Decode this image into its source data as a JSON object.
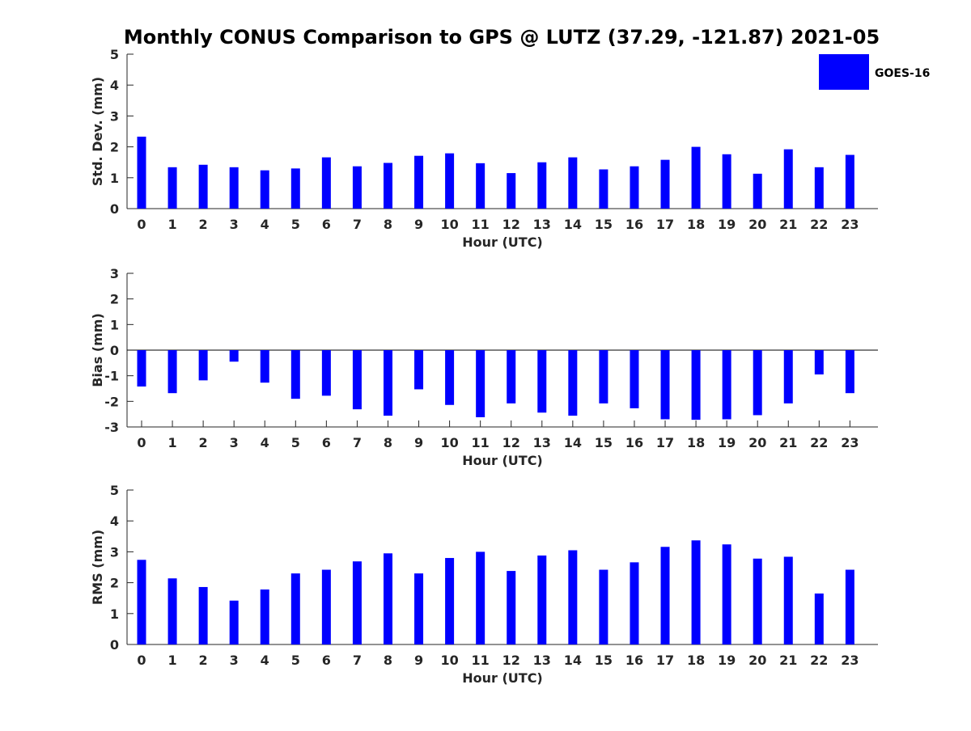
{
  "chart_data": {
    "title": "Monthly CONUS Comparison to GPS @ LUTZ (37.29, -121.87) 2021-05",
    "legend": {
      "entries": [
        "GOES-16"
      ],
      "placement": "top-right",
      "color": "#0000ff"
    },
    "panels": [
      {
        "type": "bar",
        "ylabel": "Std. Dev. (mm)",
        "xlabel": "Hour (UTC)",
        "ylim": [
          0,
          5
        ],
        "yticks": [
          "0",
          "1",
          "2",
          "3",
          "4",
          "5"
        ],
        "categories": [
          "0",
          "1",
          "2",
          "3",
          "4",
          "5",
          "6",
          "7",
          "8",
          "9",
          "10",
          "11",
          "12",
          "13",
          "14",
          "15",
          "16",
          "17",
          "18",
          "19",
          "20",
          "21",
          "22",
          "23"
        ],
        "series": [
          {
            "name": "GOES-16",
            "color": "#0000ff",
            "values": [
              2.33,
              1.34,
              1.42,
              1.34,
              1.24,
              1.3,
              1.66,
              1.37,
              1.48,
              1.71,
              1.79,
              1.47,
              1.15,
              1.5,
              1.66,
              1.27,
              1.37,
              1.58,
              2.0,
              1.76,
              1.13,
              1.92,
              1.34,
              1.74
            ]
          }
        ]
      },
      {
        "type": "bar",
        "ylabel": "Bias (mm)",
        "xlabel": "Hour (UTC)",
        "ylim": [
          -3,
          3
        ],
        "yticks": [
          "-3",
          "-2",
          "-1",
          "0",
          "1",
          "2",
          "3"
        ],
        "categories": [
          "0",
          "1",
          "2",
          "3",
          "4",
          "5",
          "6",
          "7",
          "8",
          "9",
          "10",
          "11",
          "12",
          "13",
          "14",
          "15",
          "16",
          "17",
          "18",
          "19",
          "20",
          "21",
          "22",
          "23"
        ],
        "series": [
          {
            "name": "GOES-16",
            "color": "#0000ff",
            "values": [
              -1.42,
              -1.68,
              -1.18,
              -0.45,
              -1.27,
              -1.9,
              -1.78,
              -2.31,
              -2.56,
              -1.53,
              -2.14,
              -2.62,
              -2.08,
              -2.44,
              -2.56,
              -2.08,
              -2.27,
              -2.7,
              -2.72,
              -2.7,
              -2.54,
              -2.08,
              -0.95,
              -1.68
            ]
          }
        ]
      },
      {
        "type": "bar",
        "ylabel": "RMS (mm)",
        "xlabel": "Hour (UTC)",
        "ylim": [
          0,
          5
        ],
        "yticks": [
          "0",
          "1",
          "2",
          "3",
          "4",
          "5"
        ],
        "categories": [
          "0",
          "1",
          "2",
          "3",
          "4",
          "5",
          "6",
          "7",
          "8",
          "9",
          "10",
          "11",
          "12",
          "13",
          "14",
          "15",
          "16",
          "17",
          "18",
          "19",
          "20",
          "21",
          "22",
          "23"
        ],
        "series": [
          {
            "name": "GOES-16",
            "color": "#0000ff",
            "values": [
              2.74,
              2.14,
              1.86,
              1.42,
              1.78,
              2.3,
              2.42,
              2.69,
              2.95,
              2.3,
              2.8,
              3.0,
              2.38,
              2.88,
              3.05,
              2.42,
              2.66,
              3.16,
              3.37,
              3.24,
              2.78,
              2.84,
              1.65,
              2.42
            ]
          }
        ]
      }
    ]
  }
}
